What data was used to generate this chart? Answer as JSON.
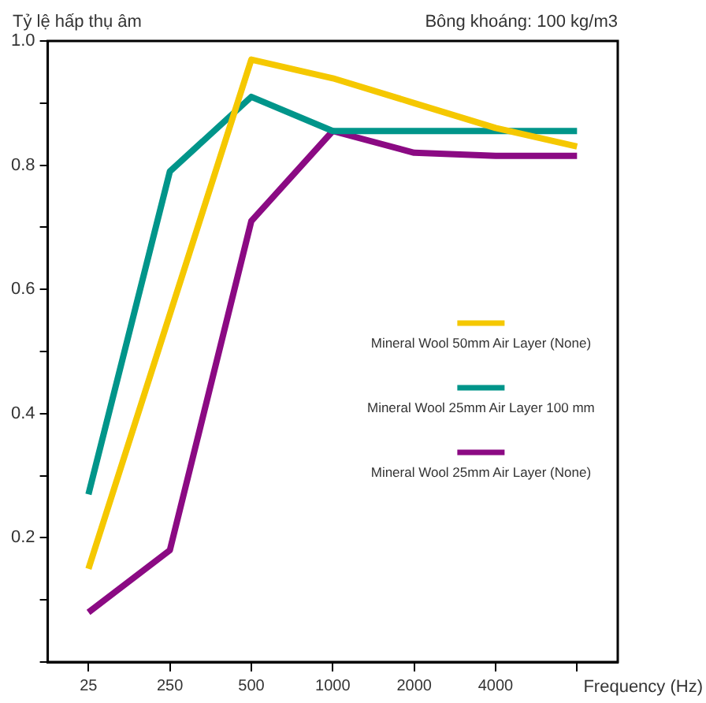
{
  "chart_data": {
    "type": "line",
    "ylabel": "Tỷ lệ hấp thụ âm",
    "subtitle": "Bông khoáng: 100 kg/m3",
    "xlabel": "Frequency (Hz)",
    "categories": [
      "25",
      "250",
      "500",
      "1000",
      "2000",
      "4000",
      null
    ],
    "ylim": [
      0,
      1
    ],
    "yticks": [
      {
        "value": 0,
        "label": null
      },
      {
        "value": 0.1,
        "label": null
      },
      0.2,
      {
        "value": 0.3,
        "label": null
      },
      0.4,
      {
        "value": 0.5,
        "label": null
      },
      0.6,
      {
        "value": 0.7,
        "label": null
      },
      0.8,
      {
        "value": 0.9,
        "label": null
      },
      {
        "value": 1,
        "label": "1.0"
      }
    ],
    "grid": false,
    "legend": "right",
    "marker": "none",
    "line_style": "solid",
    "series": [
      {
        "name": "Mineral Wool 50mm Air Layer (None)",
        "color": "#f5c800",
        "values": [
          0.15,
          0.56,
          0.97,
          0.94,
          0.9,
          0.86,
          0.83
        ]
      },
      {
        "name": "Mineral Wool 25mm Air Layer 100 mm",
        "color": "#00958a",
        "values": [
          0.27,
          0.79,
          0.91,
          0.855,
          0.855,
          0.855,
          0.855
        ]
      },
      {
        "name": "Mineral Wool 25mm Air Layer (None)",
        "color": "#8b0a83",
        "values": [
          0.08,
          0.18,
          0.71,
          0.855,
          0.82,
          0.815,
          0.815
        ]
      }
    ]
  }
}
